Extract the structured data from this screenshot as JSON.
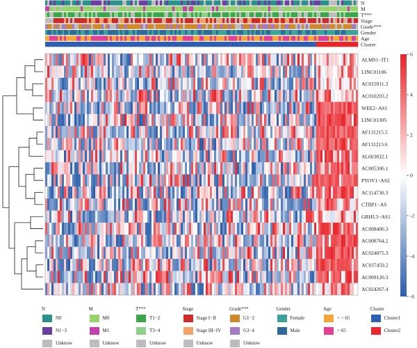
{
  "chart_data": {
    "type": "heatmap",
    "annotation_tracks": [
      {
        "label": "N",
        "colors": [
          "#2b8f8a",
          "#6a3fa0",
          "#bdbdbd"
        ]
      },
      {
        "label": "M",
        "colors": [
          "#98d36b",
          "#c73fae",
          "#bdbdbd"
        ]
      },
      {
        "label": "T***",
        "colors": [
          "#3aa84a",
          "#8fd18a",
          "#bdbdbd"
        ]
      },
      {
        "label": "Stage",
        "colors": [
          "#cf2b2b",
          "#f2a36a",
          "#bdbdbd"
        ]
      },
      {
        "label": "Grade***",
        "colors": [
          "#d08a2e",
          "#a47ac4",
          "#bdbdbd"
        ]
      },
      {
        "label": "Gender",
        "colors": [
          "#3aa39a",
          "#2f6b9a"
        ]
      },
      {
        "label": "Age",
        "colors": [
          "#f5a638",
          "#e23f96"
        ]
      },
      {
        "label": "Cluster",
        "colors": [
          "#2f5fb3",
          "#e8252a"
        ]
      }
    ],
    "rows": [
      "ALMS1−IT1",
      "LINC01106",
      "AC015911.3",
      "AC010203.2",
      "WEE2−AS1",
      "LINC01305",
      "AF131215.5",
      "AF131215.6",
      "AL603832.1",
      "AC005306.1",
      "PTOV1−AS2",
      "AC114730.3",
      "CTBP1−AS",
      "GRHL3−AS1",
      "AC008406.3",
      "AC008764.2",
      "AC024075.3",
      "AC037459.2",
      "AC009120.3",
      "AC024267.4"
    ],
    "row_high_in_cluster2": [
      0.35,
      0.2,
      0.25,
      0.5,
      0.95,
      0.9,
      0.95,
      0.95,
      0.85,
      0.8,
      0.9,
      0.85,
      0.55,
      0.4,
      0.75,
      0.9,
      0.95,
      0.95,
      0.9,
      0.5
    ],
    "cluster_split": 0.869,
    "colorbar": {
      "min": -6,
      "max": 6,
      "ticks": [
        6,
        4,
        2,
        0,
        -2,
        -4,
        -6
      ],
      "colors": [
        "#2b5eab",
        "#ffffff",
        "#e8242a"
      ]
    }
  },
  "legend": [
    {
      "title": "N",
      "items": [
        {
          "label": "N0",
          "color": "#2b8f8a"
        },
        {
          "label": "N1−3",
          "color": "#6a3fa0"
        },
        {
          "label": "Unknow",
          "color": "#bdbdbd"
        }
      ]
    },
    {
      "title": "M",
      "items": [
        {
          "label": "M0",
          "color": "#98d36b"
        },
        {
          "label": "M1",
          "color": "#c73fae"
        },
        {
          "label": "Unknow",
          "color": "#bdbdbd"
        }
      ]
    },
    {
      "title": "T***",
      "items": [
        {
          "label": "T1−2",
          "color": "#3aa84a"
        },
        {
          "label": "T3−4",
          "color": "#8fd18a"
        },
        {
          "label": "Unknow",
          "color": "#bdbdbd"
        }
      ]
    },
    {
      "title": "Stage",
      "items": [
        {
          "label": "Stage I−II",
          "color": "#cf2b2b"
        },
        {
          "label": "Stage III−IV",
          "color": "#f2a36a"
        },
        {
          "label": "Unknow",
          "color": "#bdbdbd"
        }
      ]
    },
    {
      "title": "Grade***",
      "items": [
        {
          "label": "G1−2",
          "color": "#d08a2e"
        },
        {
          "label": "G3−4",
          "color": "#a47ac4"
        },
        {
          "label": "Unknow",
          "color": "#bdbdbd"
        }
      ]
    },
    {
      "title": "Gender",
      "items": [
        {
          "label": "Female",
          "color": "#3aa39a"
        },
        {
          "label": "Male",
          "color": "#2f6b9a"
        }
      ]
    },
    {
      "title": "Age",
      "items": [
        {
          "label": "< = 65",
          "color": "#f5a638"
        },
        {
          "label": "> 65",
          "color": "#e23f96"
        }
      ]
    },
    {
      "title": "Cluster",
      "items": [
        {
          "label": "Cluster1",
          "color": "#2f5fb3"
        },
        {
          "label": "Cluster2",
          "color": "#e8252a"
        }
      ]
    }
  ]
}
